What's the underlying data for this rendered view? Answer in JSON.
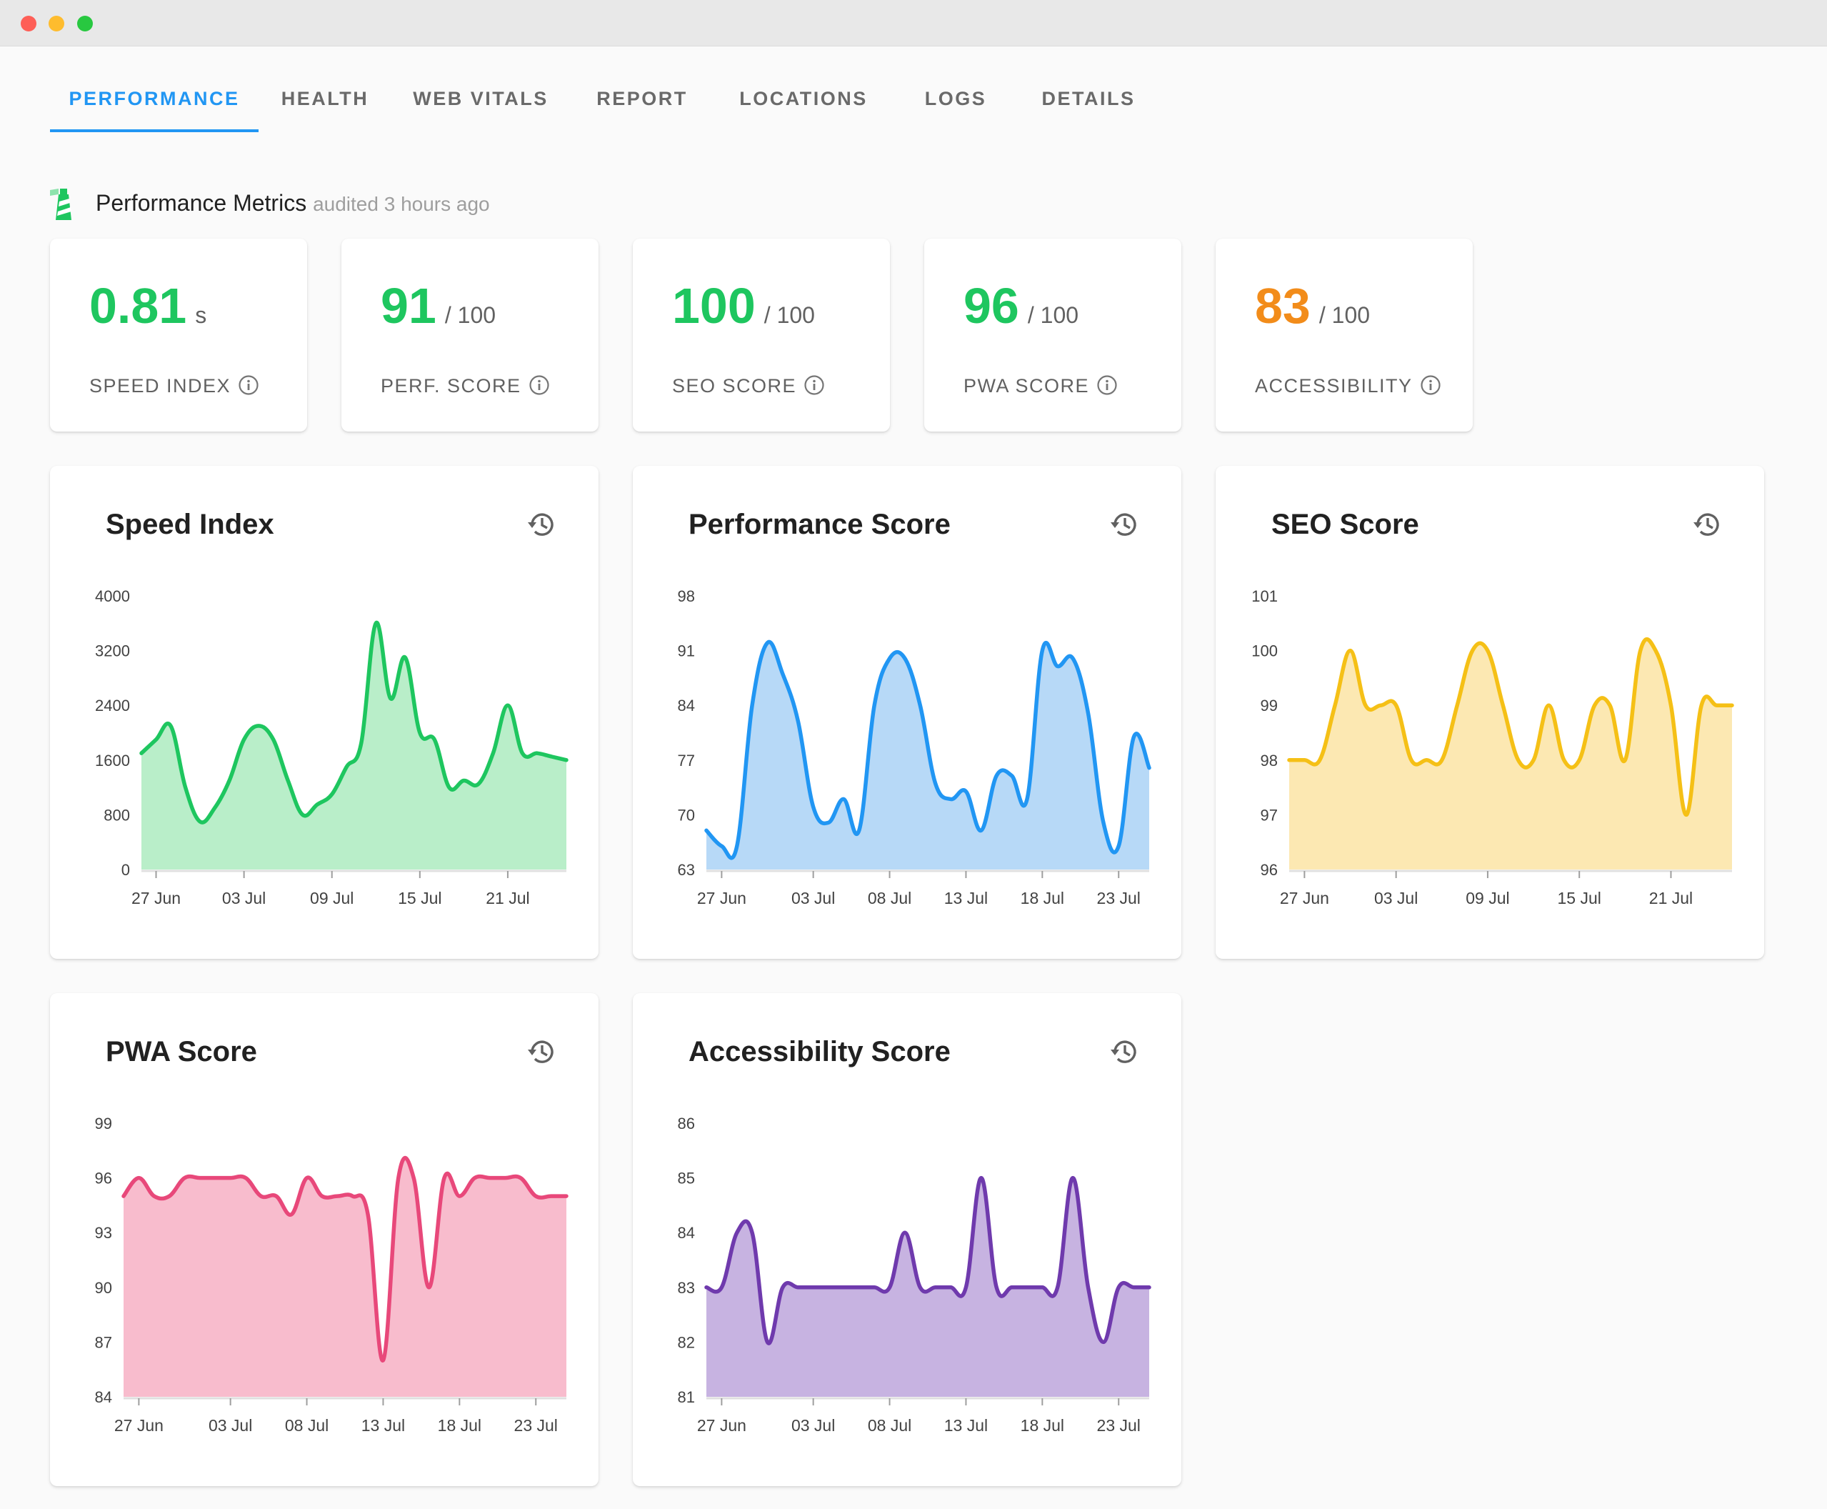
{
  "tabs": [
    {
      "label": "PERFORMANCE",
      "active": true
    },
    {
      "label": "HEALTH"
    },
    {
      "label": "WEB VITALS"
    },
    {
      "label": "REPORT"
    },
    {
      "label": "LOCATIONS"
    },
    {
      "label": "LOGS"
    },
    {
      "label": "DETAILS"
    }
  ],
  "section": {
    "title": "Performance Metrics",
    "subtitle": "audited 3 hours ago"
  },
  "stats": [
    {
      "value": "0.81",
      "unit": "s",
      "label": "SPEED INDEX",
      "color": "#1ec65f"
    },
    {
      "value": "91",
      "unit": "/ 100",
      "label": "PERF. SCORE",
      "color": "#1ec65f"
    },
    {
      "value": "100",
      "unit": "/ 100",
      "label": "SEO SCORE",
      "color": "#1ec65f"
    },
    {
      "value": "96",
      "unit": "/ 100",
      "label": "PWA SCORE",
      "color": "#1ec65f"
    },
    {
      "value": "83",
      "unit": "/ 100",
      "label": "ACCESSIBILITY",
      "color": "#f28c1a"
    }
  ],
  "chart_data": [
    {
      "type": "area",
      "title": "Speed Index",
      "color": "#1ec65f",
      "fill": "#b9eec9",
      "ylim": [
        0,
        4000
      ],
      "yticks": [
        "4000",
        "3200",
        "2400",
        "1600",
        "800",
        "0"
      ],
      "xticks": [
        "27 Jun",
        "03 Jul",
        "09 Jul",
        "15 Jul",
        "21 Jul"
      ],
      "x": [
        "26 Jun",
        "27 Jun",
        "28 Jun",
        "29 Jun",
        "30 Jun",
        "01 Jul",
        "02 Jul",
        "03 Jul",
        "04 Jul",
        "05 Jul",
        "06 Jul",
        "07 Jul",
        "08 Jul",
        "09 Jul",
        "10 Jul",
        "11 Jul",
        "12 Jul",
        "13 Jul",
        "14 Jul",
        "15 Jul",
        "16 Jul",
        "17 Jul",
        "18 Jul",
        "19 Jul",
        "20 Jul",
        "21 Jul",
        "22 Jul",
        "23 Jul",
        "24 Jul",
        "25 Jul"
      ],
      "values": [
        1700,
        1900,
        2100,
        1200,
        700,
        900,
        1300,
        1900,
        2100,
        1900,
        1300,
        800,
        950,
        1100,
        1500,
        1850,
        3600,
        2500,
        3100,
        2000,
        1900,
        1200,
        1300,
        1250,
        1700,
        2400,
        1700,
        1700,
        1650,
        1600
      ]
    },
    {
      "type": "area",
      "title": "Performance Score",
      "color": "#2196f3",
      "fill": "#b7d9f7",
      "ylim": [
        63,
        98
      ],
      "yticks": [
        "98",
        "91",
        "84",
        "77",
        "70",
        "63"
      ],
      "xticks": [
        "27 Jun",
        "03 Jul",
        "08 Jul",
        "13 Jul",
        "18 Jul",
        "23 Jul"
      ],
      "x": [
        "26 Jun",
        "27 Jun",
        "28 Jun",
        "29 Jun",
        "30 Jun",
        "01 Jul",
        "02 Jul",
        "03 Jul",
        "04 Jul",
        "05 Jul",
        "06 Jul",
        "07 Jul",
        "08 Jul",
        "09 Jul",
        "10 Jul",
        "11 Jul",
        "12 Jul",
        "13 Jul",
        "14 Jul",
        "15 Jul",
        "16 Jul",
        "17 Jul",
        "18 Jul",
        "19 Jul",
        "20 Jul",
        "21 Jul",
        "22 Jul",
        "23 Jul",
        "24 Jul",
        "25 Jul"
      ],
      "values": [
        68,
        66,
        66,
        84,
        92,
        88,
        82,
        71,
        69,
        72,
        68,
        84,
        90,
        90,
        84,
        74,
        72,
        73,
        68,
        75,
        75,
        72,
        91,
        89,
        90,
        83,
        69,
        66,
        80,
        76
      ]
    },
    {
      "type": "area",
      "title": "SEO Score",
      "color": "#f5c016",
      "fill": "#fce8b2",
      "ylim": [
        96,
        101
      ],
      "yticks": [
        "101",
        "100",
        "99",
        "98",
        "97",
        "96"
      ],
      "xticks": [
        "27 Jun",
        "03 Jul",
        "09 Jul",
        "15 Jul",
        "21 Jul"
      ],
      "x": [
        "26 Jun",
        "27 Jun",
        "28 Jun",
        "29 Jun",
        "30 Jun",
        "01 Jul",
        "02 Jul",
        "03 Jul",
        "04 Jul",
        "05 Jul",
        "06 Jul",
        "07 Jul",
        "08 Jul",
        "09 Jul",
        "10 Jul",
        "11 Jul",
        "12 Jul",
        "13 Jul",
        "14 Jul",
        "15 Jul",
        "16 Jul",
        "17 Jul",
        "18 Jul",
        "19 Jul",
        "20 Jul",
        "21 Jul",
        "22 Jul",
        "23 Jul",
        "24 Jul",
        "25 Jul"
      ],
      "values": [
        98,
        98,
        98,
        99,
        100,
        99,
        99,
        99,
        98,
        98,
        98,
        99,
        100,
        100,
        99,
        98,
        98,
        99,
        98,
        98,
        99,
        99,
        98,
        100,
        100,
        99,
        97,
        99,
        99,
        99
      ]
    },
    {
      "type": "area",
      "title": "PWA Score",
      "color": "#e8487a",
      "fill": "#f8bccd",
      "ylim": [
        84,
        99
      ],
      "yticks": [
        "99",
        "96",
        "93",
        "90",
        "87",
        "84"
      ],
      "xticks": [
        "27 Jun",
        "03 Jul",
        "08 Jul",
        "13 Jul",
        "18 Jul",
        "23 Jul"
      ],
      "x": [
        "26 Jun",
        "27 Jun",
        "28 Jun",
        "29 Jun",
        "30 Jun",
        "01 Jul",
        "02 Jul",
        "03 Jul",
        "04 Jul",
        "05 Jul",
        "06 Jul",
        "07 Jul",
        "08 Jul",
        "09 Jul",
        "10 Jul",
        "11 Jul",
        "12 Jul",
        "13 Jul",
        "14 Jul",
        "15 Jul",
        "16 Jul",
        "17 Jul",
        "18 Jul",
        "19 Jul",
        "20 Jul",
        "21 Jul",
        "22 Jul",
        "23 Jul",
        "24 Jul",
        "25 Jul"
      ],
      "values": [
        95,
        96,
        95,
        95,
        96,
        96,
        96,
        96,
        96,
        95,
        95,
        94,
        96,
        95,
        95,
        95,
        94,
        86,
        96,
        96,
        90,
        96,
        95,
        96,
        96,
        96,
        96,
        95,
        95,
        95
      ]
    },
    {
      "type": "area",
      "title": "Accessibility Score",
      "color": "#6f3aad",
      "fill": "#c7b3e1",
      "ylim": [
        81,
        86
      ],
      "yticks": [
        "86",
        "85",
        "84",
        "83",
        "82",
        "81"
      ],
      "xticks": [
        "27 Jun",
        "03 Jul",
        "08 Jul",
        "13 Jul",
        "18 Jul",
        "23 Jul"
      ],
      "x": [
        "26 Jun",
        "27 Jun",
        "28 Jun",
        "29 Jun",
        "30 Jun",
        "01 Jul",
        "02 Jul",
        "03 Jul",
        "04 Jul",
        "05 Jul",
        "06 Jul",
        "07 Jul",
        "08 Jul",
        "09 Jul",
        "10 Jul",
        "11 Jul",
        "12 Jul",
        "13 Jul",
        "14 Jul",
        "15 Jul",
        "16 Jul",
        "17 Jul",
        "18 Jul",
        "19 Jul",
        "20 Jul",
        "21 Jul",
        "22 Jul",
        "23 Jul",
        "24 Jul",
        "25 Jul"
      ],
      "values": [
        83,
        83,
        84,
        84,
        82,
        83,
        83,
        83,
        83,
        83,
        83,
        83,
        83,
        84,
        83,
        83,
        83,
        83,
        85,
        83,
        83,
        83,
        83,
        83,
        85,
        83,
        82,
        83,
        83,
        83
      ]
    }
  ]
}
